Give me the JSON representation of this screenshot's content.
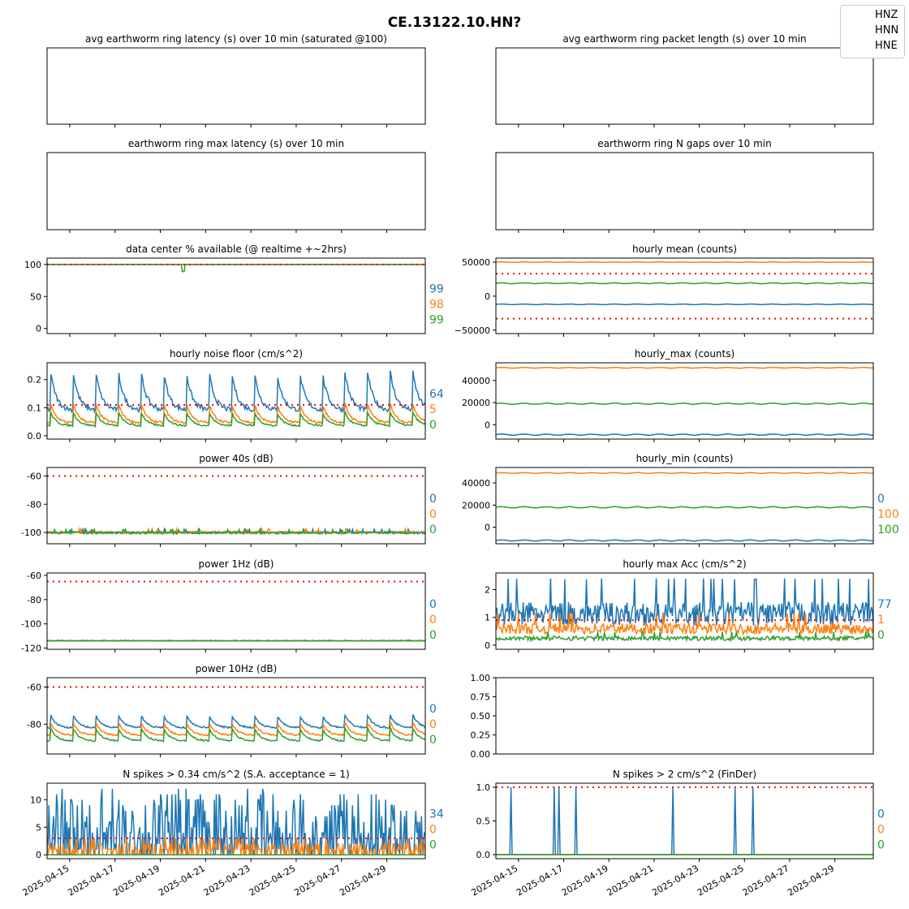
{
  "suptitle": "CE.13122.10.HN?",
  "legend": [
    "HNZ",
    "HNN",
    "HNE"
  ],
  "colors": {
    "HNZ": "#1f77b4",
    "HNN": "#ff7f0e",
    "HNE": "#2ca02c",
    "threshold": "#ff0000"
  },
  "x_tick_labels": [
    "2025-04-15",
    "2025-04-17",
    "2025-04-19",
    "2025-04-21",
    "2025-04-23",
    "2025-04-25",
    "2025-04-27",
    "2025-04-29"
  ],
  "chart_data": [
    {
      "id": "p1",
      "type": "line",
      "title": "avg earthworm ring latency (s)   over 10 min (saturated @100)",
      "series": [],
      "x_range": [
        "2025-04-14",
        "2025-04-30"
      ]
    },
    {
      "id": "p2",
      "type": "line",
      "title": "avg earthworm ring packet length (s)   over 10 min",
      "series": [],
      "x_range": [
        "2025-04-14",
        "2025-04-30"
      ]
    },
    {
      "id": "p3",
      "type": "line",
      "title": "earthworm ring max latency (s)   over 10 min",
      "series": [],
      "x_range": [
        "2025-04-14",
        "2025-04-30"
      ]
    },
    {
      "id": "p4",
      "type": "line",
      "title": "earthworm ring N gaps   over 10 min",
      "series": [],
      "x_range": [
        "2025-04-14",
        "2025-04-30"
      ]
    },
    {
      "id": "p5",
      "type": "line",
      "title": "data center % available (@ realtime +~2hrs)",
      "x_range": [
        "2025-04-14",
        "2025-04-30"
      ],
      "ylim": [
        -8,
        110
      ],
      "yticks": [
        "0",
        "50",
        "100"
      ],
      "threshold": 100,
      "side_values": [
        "99",
        "98",
        "99"
      ],
      "series": [
        {
          "name": "HNZ",
          "level": 100,
          "dips": []
        },
        {
          "name": "HNN",
          "level": 100,
          "dips": []
        },
        {
          "name": "HNE",
          "level": 100,
          "dips": [
            [
              "2025-04-20",
              89
            ]
          ]
        }
      ]
    },
    {
      "id": "p6",
      "type": "line",
      "title": "hourly mean (counts)",
      "x_range": [
        "2025-04-14",
        "2025-04-30"
      ],
      "ylim": [
        -55000,
        56000
      ],
      "yticks": [
        "50000",
        "0",
        "−50000"
      ],
      "thresholds": [
        33000,
        -33000
      ],
      "side_values": [],
      "series": [
        {
          "name": "HNZ",
          "level": -12000,
          "amplitude": 800
        },
        {
          "name": "HNN",
          "level": 50000,
          "amplitude": 500
        },
        {
          "name": "HNE",
          "level": 19000,
          "amplitude": 1200
        }
      ]
    },
    {
      "id": "p7",
      "type": "line",
      "title": "hourly noise floor (cm/s^2)",
      "x_range": [
        "2025-04-14",
        "2025-04-30"
      ],
      "ylim": [
        -0.012,
        0.26
      ],
      "yticks": [
        "0.0",
        "0.1",
        "0.2"
      ],
      "threshold": 0.11,
      "side_values": [
        "64",
        "5",
        "0"
      ],
      "series": [
        {
          "name": "HNZ",
          "base": 0.09,
          "peak": 0.23
        },
        {
          "name": "HNN",
          "base": 0.045,
          "peak": 0.115
        },
        {
          "name": "HNE",
          "base": 0.035,
          "peak": 0.085
        }
      ]
    },
    {
      "id": "p8",
      "type": "line",
      "title": "hourly_max (counts)",
      "x_range": [
        "2025-04-14",
        "2025-04-30"
      ],
      "ylim": [
        -13000,
        56000
      ],
      "yticks": [
        "40000",
        "20000",
        "0"
      ],
      "side_values": [],
      "series": [
        {
          "name": "HNZ",
          "level": -9000,
          "amplitude": 900
        },
        {
          "name": "HNN",
          "level": 51500,
          "amplitude": 600
        },
        {
          "name": "HNE",
          "level": 19000,
          "amplitude": 1000
        }
      ]
    },
    {
      "id": "p9",
      "type": "line",
      "title": "power 40s (dB)",
      "x_range": [
        "2025-04-14",
        "2025-04-30"
      ],
      "ylim": [
        -108,
        -54
      ],
      "yticks": [
        "-60",
        "-80",
        "-100"
      ],
      "threshold": -60,
      "side_values": [
        "0",
        "0",
        "0"
      ],
      "series": [
        {
          "name": "HNZ",
          "level": -100,
          "noise": 0.8
        },
        {
          "name": "HNN",
          "level": -99.8,
          "noise": 0.8
        },
        {
          "name": "HNE",
          "level": -100.2,
          "noise": 0.8
        }
      ]
    },
    {
      "id": "p10",
      "type": "line",
      "title": "hourly_min (counts)",
      "x_range": [
        "2025-04-14",
        "2025-04-30"
      ],
      "ylim": [
        -15000,
        54000
      ],
      "yticks": [
        "40000",
        "20000",
        "0"
      ],
      "side_values": [
        "0",
        "100",
        "100"
      ],
      "series": [
        {
          "name": "HNZ",
          "level": -12000,
          "amplitude": 900
        },
        {
          "name": "HNN",
          "level": 49000,
          "amplitude": 600
        },
        {
          "name": "HNE",
          "level": 18000,
          "amplitude": 1000
        }
      ]
    },
    {
      "id": "p11",
      "type": "line",
      "title": "power 1Hz (dB)",
      "x_range": [
        "2025-04-14",
        "2025-04-30"
      ],
      "ylim": [
        -121,
        -58
      ],
      "yticks": [
        "-60",
        "-80",
        "-100",
        "-120"
      ],
      "threshold": -65,
      "side_values": [
        "0",
        "0",
        "0"
      ],
      "series": [
        {
          "name": "HNZ",
          "level": -114,
          "noise": 0.2
        },
        {
          "name": "HNN",
          "level": -114,
          "noise": 0.2
        },
        {
          "name": "HNE",
          "level": -114,
          "noise": 0.2
        }
      ]
    },
    {
      "id": "p12",
      "type": "line",
      "title": "hourly max Acc (cm/s^2)",
      "x_range": [
        "2025-04-14",
        "2025-04-30"
      ],
      "ylim": [
        -0.15,
        2.6
      ],
      "yticks": [
        "2",
        "1",
        "0"
      ],
      "threshold": 0.9,
      "side_values": [
        "77",
        "1",
        "0"
      ],
      "series": [
        {
          "name": "HNZ",
          "level": 1.15,
          "noise": 0.45
        },
        {
          "name": "HNN",
          "level": 0.6,
          "noise": 0.2
        },
        {
          "name": "HNE",
          "level": 0.25,
          "noise": 0.08
        }
      ]
    },
    {
      "id": "p13",
      "type": "line",
      "title": "power 10Hz (dB)",
      "x_range": [
        "2025-04-14",
        "2025-04-30"
      ],
      "ylim": [
        -96,
        -55
      ],
      "yticks": [
        "-60",
        "-80"
      ],
      "threshold": -60,
      "side_values": [
        "0",
        "0",
        "0"
      ],
      "series": [
        {
          "name": "HNZ",
          "base": -82,
          "peak": -75
        },
        {
          "name": "HNN",
          "base": -86,
          "peak": -79
        },
        {
          "name": "HNE",
          "base": -89,
          "peak": -82
        }
      ]
    },
    {
      "id": "p14",
      "type": "line",
      "title": "",
      "ylim": [
        0,
        1
      ],
      "yticks": [
        "1.00",
        "0.75",
        "0.50",
        "0.25",
        "0.00"
      ],
      "series": []
    },
    {
      "id": "p15",
      "type": "line",
      "title": "N spikes > 0.34 cm/s^2 (S.A. acceptance = 1)",
      "x_range": [
        "2025-04-14",
        "2025-04-30"
      ],
      "ylim": [
        -0.7,
        13
      ],
      "yticks": [
        "10",
        "5",
        "0"
      ],
      "threshold": 3,
      "side_values": [
        "34",
        "0",
        "0"
      ],
      "series": [
        {
          "name": "HNZ",
          "max": 12
        },
        {
          "name": "HNN",
          "max": 3
        },
        {
          "name": "HNE",
          "max": 0
        }
      ]
    },
    {
      "id": "p16",
      "type": "line",
      "title": "N spikes > 2 cm/s^2 (FinDer)",
      "x_range": [
        "2025-04-14",
        "2025-04-30"
      ],
      "ylim": [
        -0.06,
        1.06
      ],
      "yticks": [
        "1.0",
        "0.5",
        "0.0"
      ],
      "threshold": 1,
      "side_values": [
        "0",
        "0",
        "0"
      ],
      "series": [
        {
          "name": "HNZ",
          "spikes": [
            "2025-04-14T16",
            "2025-04-16T14",
            "2025-04-16T19",
            "2025-04-17T13",
            "2025-04-21T20",
            "2025-04-24T14",
            "2025-04-25T09"
          ]
        },
        {
          "name": "HNN",
          "spikes": []
        },
        {
          "name": "HNE",
          "spikes": []
        }
      ]
    }
  ]
}
